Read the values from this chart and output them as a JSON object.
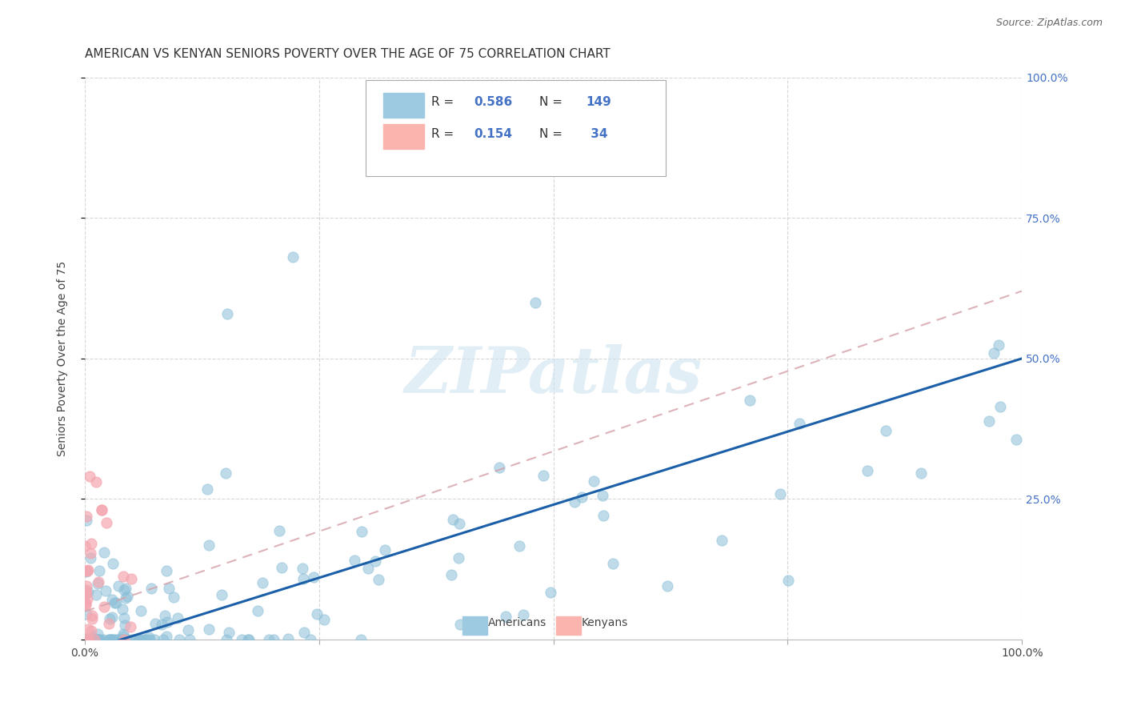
{
  "title": "AMERICAN VS KENYAN SENIORS POVERTY OVER THE AGE OF 75 CORRELATION CHART",
  "source": "Source: ZipAtlas.com",
  "ylabel": "Seniors Poverty Over the Age of 75",
  "xlim": [
    0,
    1
  ],
  "ylim": [
    0,
    1
  ],
  "xticks": [
    0.0,
    0.25,
    0.5,
    0.75,
    1.0
  ],
  "yticks": [
    0.0,
    0.25,
    0.5,
    0.75,
    1.0
  ],
  "right_yticklabels": [
    "",
    "25.0%",
    "50.0%",
    "75.0%",
    "100.0%"
  ],
  "xticklabels_show": [
    "0.0%",
    "100.0%"
  ],
  "american_color": "#8bbfd8",
  "kenyan_color": "#f4a7b0",
  "american_line_color": "#1a5fa8",
  "kenyan_line_color": "#d4a0a8",
  "R_american": 0.586,
  "N_american": 149,
  "R_kenyan": 0.154,
  "N_kenyan": 34,
  "watermark": "ZIPatlas",
  "title_fontsize": 11,
  "label_fontsize": 10,
  "tick_fontsize": 10,
  "am_trend_x": [
    0.0,
    1.0
  ],
  "am_trend_y": [
    -0.02,
    0.5
  ],
  "ken_trend_x": [
    0.0,
    1.0
  ],
  "ken_trend_y": [
    0.05,
    0.62
  ]
}
